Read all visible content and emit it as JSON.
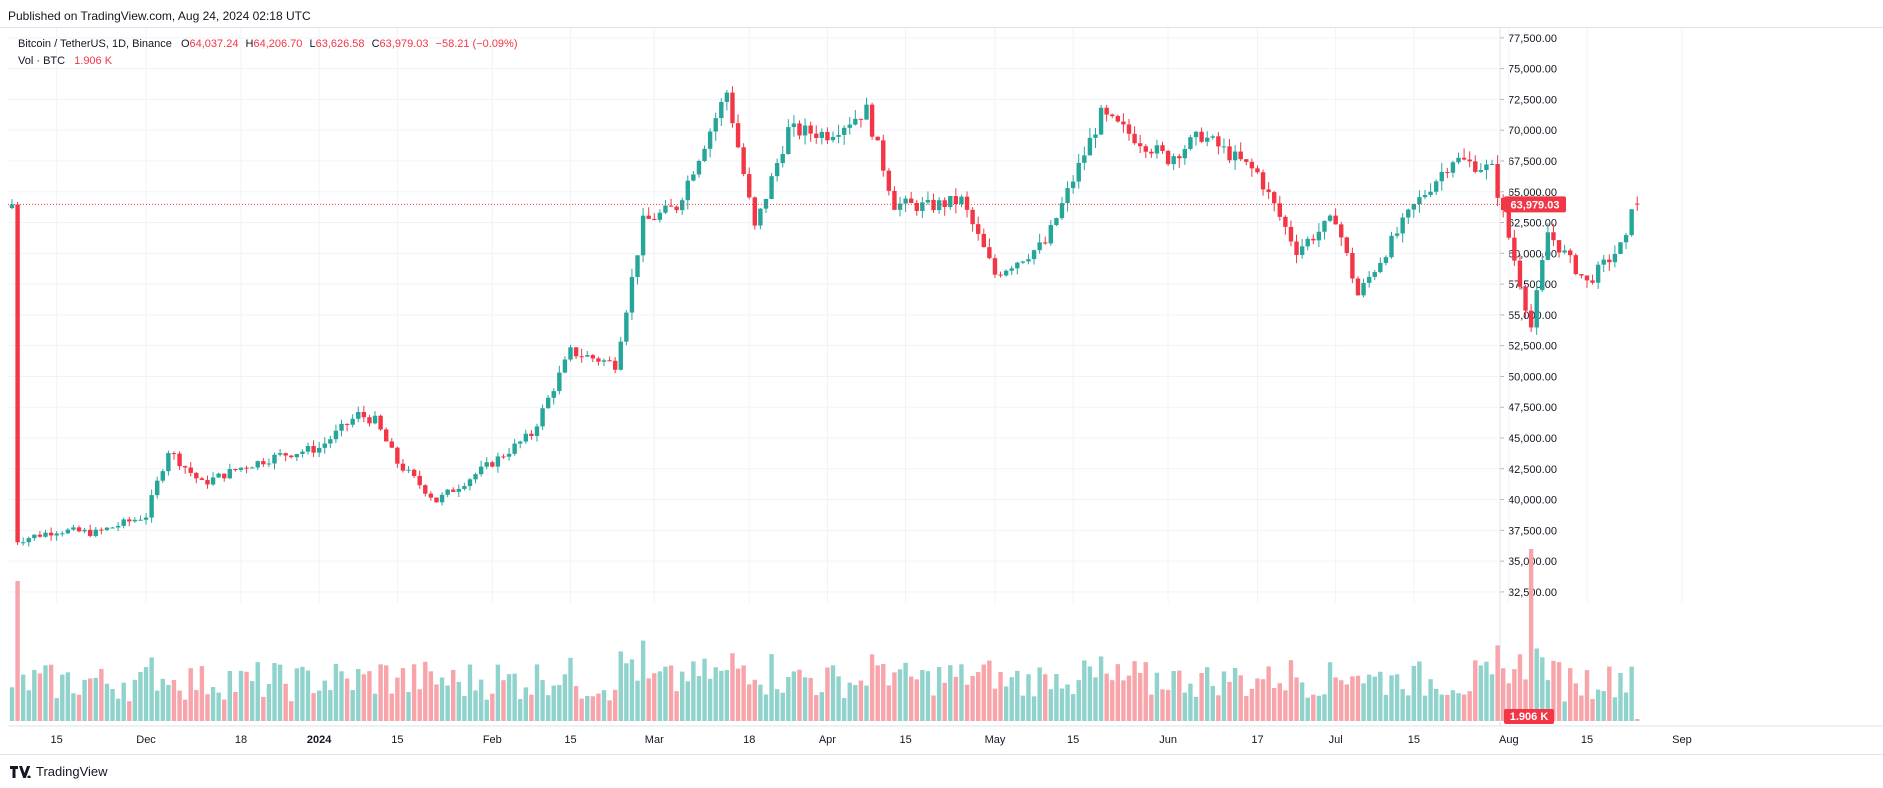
{
  "published": "Published on TradingView.com, Aug 24, 2024 02:18 UTC",
  "legend": {
    "symbol": "Bitcoin / TetherUS, 1D, Binance",
    "o_label": "O",
    "o_value": "64,037.24",
    "h_label": "H",
    "h_value": "64,206.70",
    "l_label": "L",
    "l_value": "63,626.58",
    "c_label": "C",
    "c_value": "63,979.03",
    "change": "−58.21 (−0.09%)",
    "vol_label": "Vol · BTC",
    "vol_value": "1.906 K"
  },
  "colors": {
    "up": "#26a69a",
    "down": "#f23645",
    "vol_up": "#8fd3cc",
    "vol_down": "#f7a4aa",
    "grid": "#f0f3fa"
  },
  "footer": {
    "brand": "TradingView",
    "logo_icon": "tradingview-logo-icon"
  },
  "chart_data": {
    "type": "candlestick",
    "title": "Bitcoin / TetherUS, 1D, Binance",
    "y_ticks": [
      "77,500.00",
      "75,000.00",
      "72,500.00",
      "70,000.00",
      "67,500.00",
      "65,000.00",
      "62,500.00",
      "60,000.00",
      "57,500.00",
      "55,000.00",
      "52,500.00",
      "50,000.00",
      "47,500.00",
      "45,000.00",
      "42,500.00",
      "40,000.00",
      "37,500.00",
      "35,000.00",
      "32,500.00"
    ],
    "x_ticks": [
      "15",
      "Dec",
      "18",
      "2024",
      "15",
      "Feb",
      "15",
      "Mar",
      "18",
      "Apr",
      "15",
      "May",
      "15",
      "Jun",
      "17",
      "Jul",
      "15",
      "Aug",
      "15",
      "Sep"
    ],
    "bold_x_ticks": [
      "2024"
    ],
    "ylim": [
      31600,
      78300
    ],
    "last_price_label": "63,979.03",
    "last_volume_label": "1.906 K",
    "grid": true,
    "close_series": [
      {
        "date": "2023-11-08",
        "close": 36700
      },
      {
        "date": "2023-11-15",
        "close": 37500
      },
      {
        "date": "2023-11-22",
        "close": 37300
      },
      {
        "date": "2023-12-01",
        "close": 38700
      },
      {
        "date": "2023-12-05",
        "close": 44000
      },
      {
        "date": "2023-12-11",
        "close": 41300
      },
      {
        "date": "2023-12-18",
        "close": 42600
      },
      {
        "date": "2023-12-25",
        "close": 43600
      },
      {
        "date": "2024-01-01",
        "close": 44200
      },
      {
        "date": "2024-01-08",
        "close": 46900
      },
      {
        "date": "2024-01-11",
        "close": 46400
      },
      {
        "date": "2024-01-15",
        "close": 43000
      },
      {
        "date": "2024-01-22",
        "close": 39900
      },
      {
        "date": "2024-02-01",
        "close": 43000
      },
      {
        "date": "2024-02-08",
        "close": 45300
      },
      {
        "date": "2024-02-15",
        "close": 52000
      },
      {
        "date": "2024-02-23",
        "close": 51000
      },
      {
        "date": "2024-02-28",
        "close": 62500
      },
      {
        "date": "2024-03-05",
        "close": 63800
      },
      {
        "date": "2024-03-14",
        "close": 73100
      },
      {
        "date": "2024-03-19",
        "close": 62000
      },
      {
        "date": "2024-03-25",
        "close": 70000
      },
      {
        "date": "2024-04-01",
        "close": 69700
      },
      {
        "date": "2024-04-08",
        "close": 71600
      },
      {
        "date": "2024-04-13",
        "close": 64000
      },
      {
        "date": "2024-04-19",
        "close": 63800
      },
      {
        "date": "2024-04-25",
        "close": 64300
      },
      {
        "date": "2024-05-01",
        "close": 58300
      },
      {
        "date": "2024-05-10",
        "close": 60800
      },
      {
        "date": "2024-05-20",
        "close": 71200
      },
      {
        "date": "2024-06-01",
        "close": 67700
      },
      {
        "date": "2024-06-07",
        "close": 69600
      },
      {
        "date": "2024-06-17",
        "close": 66500
      },
      {
        "date": "2024-06-24",
        "close": 60300
      },
      {
        "date": "2024-07-01",
        "close": 62900
      },
      {
        "date": "2024-07-05",
        "close": 56600
      },
      {
        "date": "2024-07-15",
        "close": 63800
      },
      {
        "date": "2024-07-22",
        "close": 67700
      },
      {
        "date": "2024-07-29",
        "close": 66800
      },
      {
        "date": "2024-08-05",
        "close": 54000
      },
      {
        "date": "2024-08-08",
        "close": 61700
      },
      {
        "date": "2024-08-15",
        "close": 57600
      },
      {
        "date": "2024-08-22",
        "close": 61000
      },
      {
        "date": "2024-08-23",
        "close": 64037
      },
      {
        "date": "2024-08-24",
        "close": 63979
      }
    ]
  }
}
